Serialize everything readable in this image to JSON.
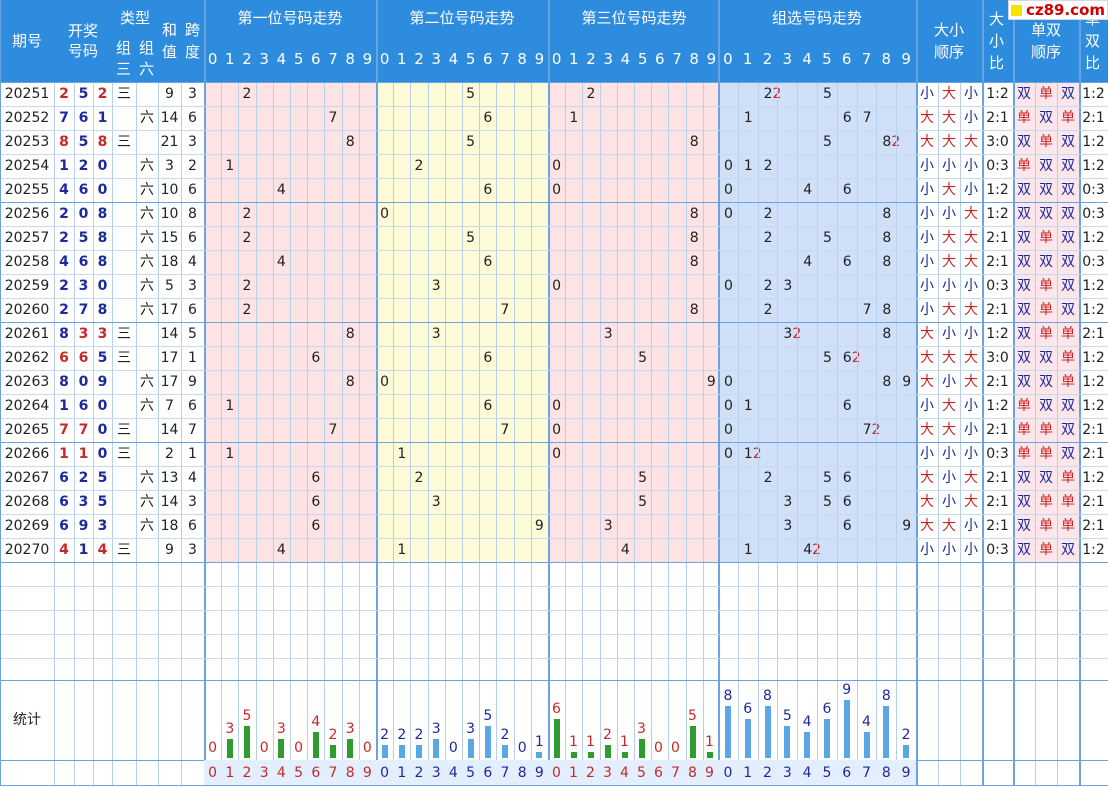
{
  "watermark": "cz89.com",
  "colors": {
    "header": "#2e8cde",
    "blue": "#1a2a9c",
    "red": "#c62828",
    "green": "#2e9c2e",
    "lightblue": "#5aa6e6"
  },
  "headers": {
    "period": "期号",
    "draw": "开奖号码",
    "type": "类型",
    "type_z3": "组三",
    "type_z6": "组六",
    "sum": "和值",
    "span": "跨度",
    "pos1": "第一位号码走势",
    "pos2": "第二位号码走势",
    "pos3": "第三位号码走势",
    "group": "组选号码走势",
    "bs_order": "大小顺序",
    "bs_ratio": "大小比",
    "oe_order": "单双顺序",
    "oe_ratio": "单双比",
    "digits": [
      "0",
      "1",
      "2",
      "3",
      "4",
      "5",
      "6",
      "7",
      "8",
      "9"
    ]
  },
  "rows": [
    {
      "p": "20251",
      "d": [
        "2",
        "5",
        "2"
      ],
      "t": "三",
      "sum": "9",
      "span": "3",
      "bs": [
        "小",
        "大",
        "小"
      ],
      "bsr": "1:2",
      "oe": [
        "双",
        "单",
        "双"
      ],
      "oer": "1:2"
    },
    {
      "p": "20252",
      "d": [
        "7",
        "6",
        "1"
      ],
      "t": "六",
      "sum": "14",
      "span": "6",
      "bs": [
        "大",
        "大",
        "小"
      ],
      "bsr": "2:1",
      "oe": [
        "单",
        "双",
        "单"
      ],
      "oer": "2:1"
    },
    {
      "p": "20253",
      "d": [
        "8",
        "5",
        "8"
      ],
      "t": "三",
      "sum": "21",
      "span": "3",
      "bs": [
        "大",
        "大",
        "大"
      ],
      "bsr": "3:0",
      "oe": [
        "双",
        "单",
        "双"
      ],
      "oer": "1:2"
    },
    {
      "p": "20254",
      "d": [
        "1",
        "2",
        "0"
      ],
      "t": "六",
      "sum": "3",
      "span": "2",
      "bs": [
        "小",
        "小",
        "小"
      ],
      "bsr": "0:3",
      "oe": [
        "单",
        "双",
        "双"
      ],
      "oer": "1:2"
    },
    {
      "p": "20255",
      "d": [
        "4",
        "6",
        "0"
      ],
      "t": "六",
      "sum": "10",
      "span": "6",
      "bs": [
        "小",
        "大",
        "小"
      ],
      "bsr": "1:2",
      "oe": [
        "双",
        "双",
        "双"
      ],
      "oer": "0:3"
    },
    {
      "p": "20256",
      "d": [
        "2",
        "0",
        "8"
      ],
      "t": "六",
      "sum": "10",
      "span": "8",
      "bs": [
        "小",
        "小",
        "大"
      ],
      "bsr": "1:2",
      "oe": [
        "双",
        "双",
        "双"
      ],
      "oer": "0:3"
    },
    {
      "p": "20257",
      "d": [
        "2",
        "5",
        "8"
      ],
      "t": "六",
      "sum": "15",
      "span": "6",
      "bs": [
        "小",
        "大",
        "大"
      ],
      "bsr": "2:1",
      "oe": [
        "双",
        "单",
        "双"
      ],
      "oer": "1:2"
    },
    {
      "p": "20258",
      "d": [
        "4",
        "6",
        "8"
      ],
      "t": "六",
      "sum": "18",
      "span": "4",
      "bs": [
        "小",
        "大",
        "大"
      ],
      "bsr": "2:1",
      "oe": [
        "双",
        "双",
        "双"
      ],
      "oer": "0:3"
    },
    {
      "p": "20259",
      "d": [
        "2",
        "3",
        "0"
      ],
      "t": "六",
      "sum": "5",
      "span": "3",
      "bs": [
        "小",
        "小",
        "小"
      ],
      "bsr": "0:3",
      "oe": [
        "双",
        "单",
        "双"
      ],
      "oer": "1:2"
    },
    {
      "p": "20260",
      "d": [
        "2",
        "7",
        "8"
      ],
      "t": "六",
      "sum": "17",
      "span": "6",
      "bs": [
        "小",
        "大",
        "大"
      ],
      "bsr": "2:1",
      "oe": [
        "双",
        "单",
        "双"
      ],
      "oer": "1:2"
    },
    {
      "p": "20261",
      "d": [
        "8",
        "3",
        "3"
      ],
      "t": "三",
      "sum": "14",
      "span": "5",
      "bs": [
        "大",
        "小",
        "小"
      ],
      "bsr": "1:2",
      "oe": [
        "双",
        "单",
        "单"
      ],
      "oer": "2:1"
    },
    {
      "p": "20262",
      "d": [
        "6",
        "6",
        "5"
      ],
      "t": "三",
      "sum": "17",
      "span": "1",
      "bs": [
        "大",
        "大",
        "大"
      ],
      "bsr": "3:0",
      "oe": [
        "双",
        "双",
        "单"
      ],
      "oer": "1:2"
    },
    {
      "p": "20263",
      "d": [
        "8",
        "0",
        "9"
      ],
      "t": "六",
      "sum": "17",
      "span": "9",
      "bs": [
        "大",
        "小",
        "大"
      ],
      "bsr": "2:1",
      "oe": [
        "双",
        "双",
        "单"
      ],
      "oer": "1:2"
    },
    {
      "p": "20264",
      "d": [
        "1",
        "6",
        "0"
      ],
      "t": "六",
      "sum": "7",
      "span": "6",
      "bs": [
        "小",
        "大",
        "小"
      ],
      "bsr": "1:2",
      "oe": [
        "单",
        "双",
        "双"
      ],
      "oer": "1:2"
    },
    {
      "p": "20265",
      "d": [
        "7",
        "7",
        "0"
      ],
      "t": "三",
      "sum": "14",
      "span": "7",
      "bs": [
        "大",
        "大",
        "小"
      ],
      "bsr": "2:1",
      "oe": [
        "单",
        "单",
        "双"
      ],
      "oer": "2:1"
    },
    {
      "p": "20266",
      "d": [
        "1",
        "1",
        "0"
      ],
      "t": "三",
      "sum": "2",
      "span": "1",
      "bs": [
        "小",
        "小",
        "小"
      ],
      "bsr": "0:3",
      "oe": [
        "单",
        "单",
        "双"
      ],
      "oer": "2:1"
    },
    {
      "p": "20267",
      "d": [
        "6",
        "2",
        "5"
      ],
      "t": "六",
      "sum": "13",
      "span": "4",
      "bs": [
        "大",
        "小",
        "大"
      ],
      "bsr": "2:1",
      "oe": [
        "双",
        "双",
        "单"
      ],
      "oer": "1:2"
    },
    {
      "p": "20268",
      "d": [
        "6",
        "3",
        "5"
      ],
      "t": "六",
      "sum": "14",
      "span": "3",
      "bs": [
        "大",
        "小",
        "大"
      ],
      "bsr": "2:1",
      "oe": [
        "双",
        "单",
        "单"
      ],
      "oer": "2:1"
    },
    {
      "p": "20269",
      "d": [
        "6",
        "9",
        "3"
      ],
      "t": "六",
      "sum": "18",
      "span": "6",
      "bs": [
        "大",
        "大",
        "小"
      ],
      "bsr": "2:1",
      "oe": [
        "双",
        "单",
        "单"
      ],
      "oer": "2:1"
    },
    {
      "p": "20270",
      "d": [
        "4",
        "1",
        "4"
      ],
      "t": "三",
      "sum": "9",
      "span": "3",
      "bs": [
        "小",
        "小",
        "小"
      ],
      "bsr": "0:3",
      "oe": [
        "双",
        "单",
        "双"
      ],
      "oer": "1:2"
    }
  ],
  "stats": {
    "label": "统计",
    "pos1": [
      0,
      3,
      5,
      0,
      3,
      0,
      4,
      2,
      3,
      0
    ],
    "pos2": [
      2,
      2,
      2,
      3,
      0,
      3,
      5,
      2,
      0,
      1
    ],
    "pos3": [
      6,
      1,
      1,
      2,
      1,
      3,
      0,
      0,
      5,
      1
    ],
    "group": [
      8,
      6,
      8,
      5,
      4,
      6,
      9,
      4,
      8,
      2
    ]
  }
}
